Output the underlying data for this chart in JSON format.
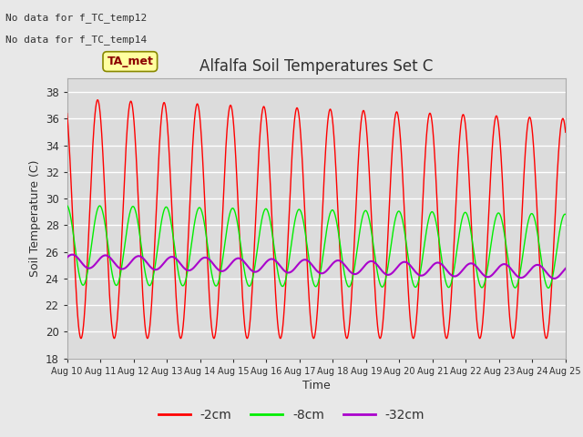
{
  "title": "Alfalfa Soil Temperatures Set C",
  "xlabel": "Time",
  "ylabel": "Soil Temperature (C)",
  "ylim": [
    18,
    39
  ],
  "yticks": [
    18,
    20,
    22,
    24,
    26,
    28,
    30,
    32,
    34,
    36,
    38
  ],
  "date_start": 10,
  "date_end": 25,
  "xtick_labels": [
    "Aug 10",
    "Aug 11",
    "Aug 12",
    "Aug 13",
    "Aug 14",
    "Aug 15",
    "Aug 16",
    "Aug 17",
    "Aug 18",
    "Aug 19",
    "Aug 20",
    "Aug 21",
    "Aug 22",
    "Aug 23",
    "Aug 24",
    "Aug 25"
  ],
  "line_2cm_color": "#FF0000",
  "line_8cm_color": "#00EE00",
  "line_32cm_color": "#AA00CC",
  "line_2cm_label": "-2cm",
  "line_8cm_label": "-8cm",
  "line_32cm_label": "-32cm",
  "no_data_text1": "No data for f_TC_temp12",
  "no_data_text2": "No data for f_TC_temp14",
  "ta_met_label": "TA_met",
  "fig_color": "#E8E8E8",
  "plot_bg_color": "#DCDCDC",
  "grid_color": "#FFFFFF",
  "text_color": "#303030"
}
